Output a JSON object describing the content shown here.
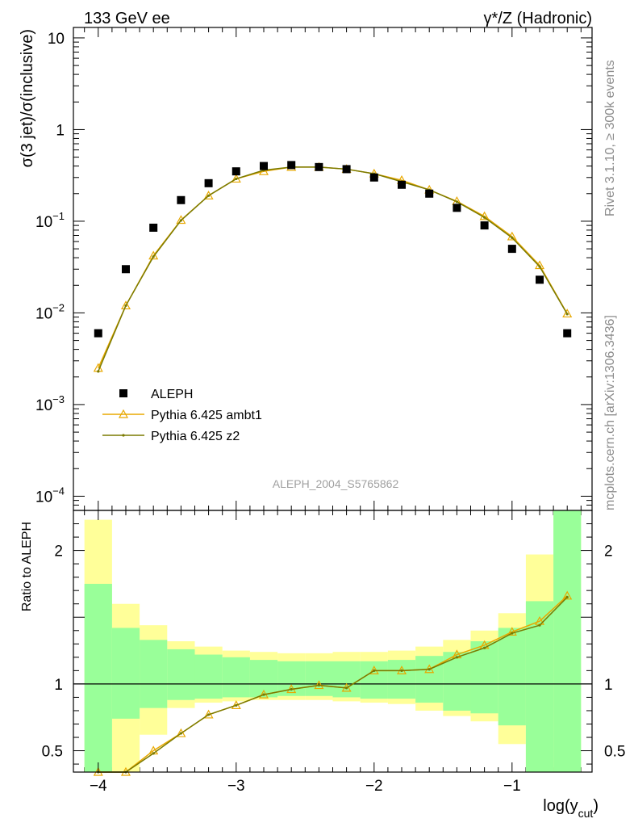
{
  "header": {
    "left": "133 GeV ee",
    "right": "γ*/Z (Hadronic)"
  },
  "side_notes": {
    "rivet": "Rivet 3.1.10, ≥ 300k events",
    "mcplots": "mcplots.cern.ch [arXiv:1306.3436]"
  },
  "chart_data": [
    {
      "type": "scatter",
      "panel": "main",
      "ylabel": "σ(3 jet)/σ(inclusive)",
      "yscale": "log",
      "ylim": [
        7e-05,
        13
      ],
      "xlim": [
        -4.18,
        -0.42
      ],
      "watermark": "ALEPH_2004_S5765862",
      "legend_placement": "lower-left",
      "x": [
        -4.0,
        -3.8,
        -3.6,
        -3.4,
        -3.2,
        -3.0,
        -2.8,
        -2.6,
        -2.4,
        -2.2,
        -2.0,
        -1.8,
        -1.6,
        -1.4,
        -1.2,
        -1.0,
        -0.8,
        -0.6
      ],
      "series": [
        {
          "name": "ALEPH",
          "marker": "square",
          "color": "#000000",
          "values": [
            0.006,
            0.03,
            0.085,
            0.17,
            0.26,
            0.35,
            0.4,
            0.41,
            0.39,
            0.37,
            0.3,
            0.25,
            0.2,
            0.14,
            0.09,
            0.05,
            0.023,
            0.006
          ]
        },
        {
          "name": "Pythia 6.425 ambt1",
          "marker": "triangle",
          "color": "#e8a800",
          "values": [
            0.0025,
            0.012,
            0.042,
            0.103,
            0.19,
            0.29,
            0.35,
            0.39,
            0.39,
            0.37,
            0.33,
            0.28,
            0.22,
            0.165,
            0.113,
            0.068,
            0.033,
            0.0098
          ]
        },
        {
          "name": "Pythia 6.425 z2",
          "marker": "dot",
          "color": "#7a7a00",
          "values": [
            0.0023,
            0.012,
            0.041,
            0.102,
            0.19,
            0.29,
            0.36,
            0.39,
            0.39,
            0.37,
            0.33,
            0.27,
            0.22,
            0.163,
            0.11,
            0.066,
            0.032,
            0.0097
          ]
        }
      ],
      "yticks": [
        {
          "value": 0.0001,
          "base": "10",
          "exp": "−4"
        },
        {
          "value": 0.001,
          "base": "10",
          "exp": "−3"
        },
        {
          "value": 0.01,
          "base": "10",
          "exp": "−2"
        },
        {
          "value": 0.1,
          "base": "10",
          "exp": "−1"
        },
        {
          "value": 1,
          "base": "1",
          "exp": ""
        },
        {
          "value": 10,
          "base": "10",
          "exp": ""
        }
      ]
    },
    {
      "type": "line",
      "panel": "ratio",
      "ylabel": "Ratio to ALEPH",
      "ylim": [
        0.34,
        2.3
      ],
      "xlim": [
        -4.18,
        -0.42
      ],
      "xlabel": "log(y",
      "xlabel_sub": "cut",
      "xlabel_close": ")",
      "x": [
        -4.0,
        -3.8,
        -3.6,
        -3.4,
        -3.2,
        -3.0,
        -2.8,
        -2.6,
        -2.4,
        -2.2,
        -2.0,
        -1.8,
        -1.6,
        -1.4,
        -1.2,
        -1.0,
        -0.8,
        -0.6
      ],
      "bin_edges": [
        -4.1,
        -3.9,
        -3.7,
        -3.5,
        -3.3,
        -3.1,
        -2.9,
        -2.7,
        -2.5,
        -2.3,
        -2.1,
        -1.9,
        -1.7,
        -1.5,
        -1.3,
        -1.1,
        -0.9,
        -0.7,
        -0.5
      ],
      "band_total": {
        "color": "#ffff99",
        "low": [
          0.34,
          0.34,
          0.62,
          0.82,
          0.86,
          0.87,
          0.88,
          0.88,
          0.88,
          0.87,
          0.86,
          0.85,
          0.8,
          0.76,
          0.72,
          0.55,
          0.34,
          0.34
        ],
        "high": [
          2.23,
          1.6,
          1.44,
          1.32,
          1.28,
          1.25,
          1.24,
          1.23,
          1.23,
          1.24,
          1.24,
          1.25,
          1.28,
          1.33,
          1.4,
          1.53,
          1.97,
          2.3
        ]
      },
      "band_stat": {
        "color": "#99ff99",
        "low": [
          0.34,
          0.74,
          0.82,
          0.88,
          0.89,
          0.9,
          0.9,
          0.91,
          0.91,
          0.9,
          0.89,
          0.89,
          0.86,
          0.8,
          0.78,
          0.69,
          0.34,
          0.34
        ],
        "high": [
          1.75,
          1.42,
          1.33,
          1.26,
          1.22,
          1.2,
          1.18,
          1.17,
          1.17,
          1.17,
          1.17,
          1.18,
          1.21,
          1.24,
          1.32,
          1.42,
          1.62,
          2.3
        ]
      },
      "series": [
        {
          "name": "Pythia 6.425 ambt1",
          "color": "#e8a800",
          "values": [
            0.34,
            0.34,
            0.5,
            0.63,
            0.77,
            0.84,
            0.92,
            0.96,
            0.99,
            0.97,
            1.1,
            1.1,
            1.11,
            1.22,
            1.29,
            1.39,
            1.47,
            1.66
          ]
        },
        {
          "name": "Pythia 6.425 z2",
          "color": "#7a7a00",
          "values": [
            0.34,
            0.34,
            0.48,
            0.63,
            0.77,
            0.84,
            0.92,
            0.96,
            0.99,
            0.97,
            1.1,
            1.1,
            1.11,
            1.2,
            1.27,
            1.38,
            1.44,
            1.65
          ]
        }
      ],
      "yticks": [
        {
          "value": 0.5,
          "label": "0.5"
        },
        {
          "value": 1,
          "label": "1"
        },
        {
          "value": 2,
          "label": "2"
        }
      ],
      "xticks": [
        {
          "value": -4,
          "label": "−4"
        },
        {
          "value": -3,
          "label": "−3"
        },
        {
          "value": -2,
          "label": "−2"
        },
        {
          "value": -1,
          "label": "−1"
        }
      ]
    }
  ]
}
